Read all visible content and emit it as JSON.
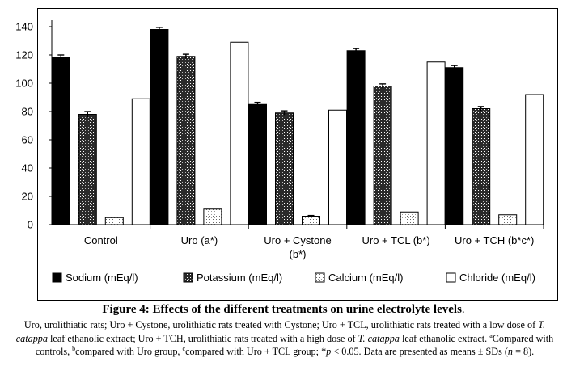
{
  "chart_data": {
    "type": "bar",
    "categories": [
      "Control",
      "Uro (a*)",
      "Uro + Cystone\n(b*)",
      "Uro + TCL (b*)",
      "Uro + TCH (b*c*)"
    ],
    "series": [
      {
        "name": "Sodium (mEq/l)",
        "values": [
          118,
          138,
          85,
          123,
          111
        ],
        "errors": [
          2,
          1.5,
          1.5,
          1.5,
          1.5
        ],
        "fill": "solid-black"
      },
      {
        "name": "Potassium (mEq/l)",
        "values": [
          78,
          119,
          79,
          98,
          82
        ],
        "errors": [
          2,
          1.5,
          1.5,
          1.5,
          1.5
        ],
        "fill": "dark-stipple"
      },
      {
        "name": "Calcium (mEq/l)",
        "values": [
          5,
          11,
          6,
          9,
          7
        ],
        "errors": [
          0,
          0,
          0.5,
          0,
          0
        ],
        "fill": "light-stipple"
      },
      {
        "name": "Chloride (mEq/l)",
        "values": [
          89,
          129,
          81,
          115,
          92
        ],
        "errors": [
          0,
          0,
          0,
          0,
          0
        ],
        "fill": "white"
      }
    ],
    "yticks": [
      "0",
      "20",
      "40",
      "60",
      "80",
      "100",
      "120",
      "140"
    ],
    "ylim": [
      0,
      140
    ],
    "grid": false,
    "legend": "bottom",
    "colors": {
      "bar_black": "#000000",
      "bar_white": "#ffffff",
      "axis": "#000000"
    }
  },
  "figure": {
    "title_bold": "Figure 4: Effects of the different treatments on urine electrolyte levels",
    "title_end": ".",
    "caption_1": "Uro, urolithiatic rats; Uro + Cystone, urolithiatic rats treated with Cystone; Uro + TCL, urolithiatic rats treated with a low dose of ",
    "caption_species_1": "T. catappa",
    "caption_2": " leaf ethanolic extract; Uro + TCH, urolithiatic rats treated with a high dose of ",
    "caption_species_2": "T. catappa",
    "caption_3": " leaf ethanolic extract. ",
    "sup_a": "a",
    "caption_4": "Compared with controls, ",
    "sup_b": "b",
    "caption_5": "compared with Uro group, ",
    "sup_c": "c",
    "caption_6": "compared with Uro + TCL group; *",
    "caption_p": "p",
    "caption_7": " < 0.05. Data are presented as means ± SDs (",
    "caption_n": "n",
    "caption_8": " = 8)."
  }
}
